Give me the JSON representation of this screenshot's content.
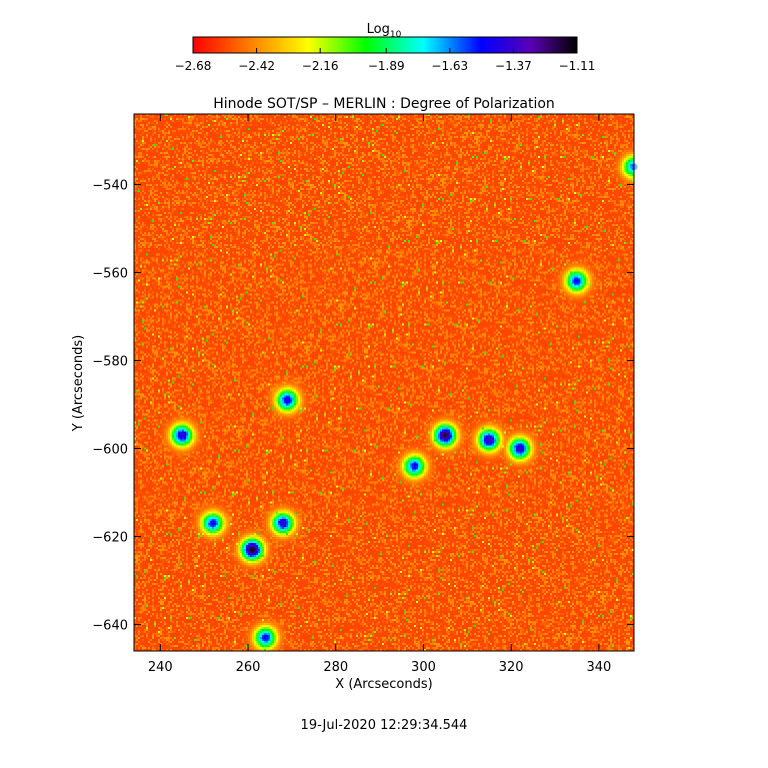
{
  "chart_data": {
    "type": "heatmap",
    "title": "Hinode SOT/SP – MERLIN : Degree of Polarization",
    "xlabel": "X (Arcseconds)",
    "ylabel": "Y (Arcseconds)",
    "xlim": [
      234,
      348
    ],
    "ylim": [
      -646,
      -524
    ],
    "x_ticks": [
      240,
      260,
      280,
      300,
      320,
      340
    ],
    "y_ticks": [
      -540,
      -560,
      -580,
      -600,
      -620,
      -640
    ],
    "x_tick_labels": [
      "240",
      "260",
      "280",
      "300",
      "320",
      "340"
    ],
    "y_tick_labels": [
      "−540",
      "−560",
      "−580",
      "−600",
      "−620",
      "−640"
    ],
    "grid": false,
    "colorbar": {
      "label_base": "Log",
      "label_sub": "10",
      "range": [
        -2.68,
        -1.11
      ],
      "tick_values": [
        -2.68,
        -2.42,
        -2.16,
        -1.89,
        -1.63,
        -1.37,
        -1.11
      ],
      "tick_labels": [
        "−2.68",
        "−2.42",
        "−2.16",
        "−1.89",
        "−1.63",
        "−1.37",
        "−1.11"
      ],
      "colormap": [
        "#ff0000",
        "#ff7f00",
        "#ffff00",
        "#00ff00",
        "#00ffff",
        "#0000ff",
        "#5a00b4",
        "#000000"
      ],
      "placement": "top"
    },
    "field_background_value": -2.55,
    "active_regions": [
      {
        "x": 305,
        "y": -597,
        "peak": -1.2
      },
      {
        "x": 315,
        "y": -598,
        "peak": -1.35
      },
      {
        "x": 322,
        "y": -600,
        "peak": -1.4
      },
      {
        "x": 261,
        "y": -623,
        "peak": -1.15
      },
      {
        "x": 268,
        "y": -617,
        "peak": -1.4
      },
      {
        "x": 252,
        "y": -617,
        "peak": -1.5
      },
      {
        "x": 264,
        "y": -643,
        "peak": -1.5
      },
      {
        "x": 269,
        "y": -589,
        "peak": -1.45
      },
      {
        "x": 245,
        "y": -597,
        "peak": -1.4
      },
      {
        "x": 298,
        "y": -604,
        "peak": -1.5
      },
      {
        "x": 335,
        "y": -562,
        "peak": -1.5
      },
      {
        "x": 348,
        "y": -536,
        "peak": -1.6
      }
    ]
  },
  "footer": {
    "timestamp": "19-Jul-2020 12:29:34.544"
  }
}
